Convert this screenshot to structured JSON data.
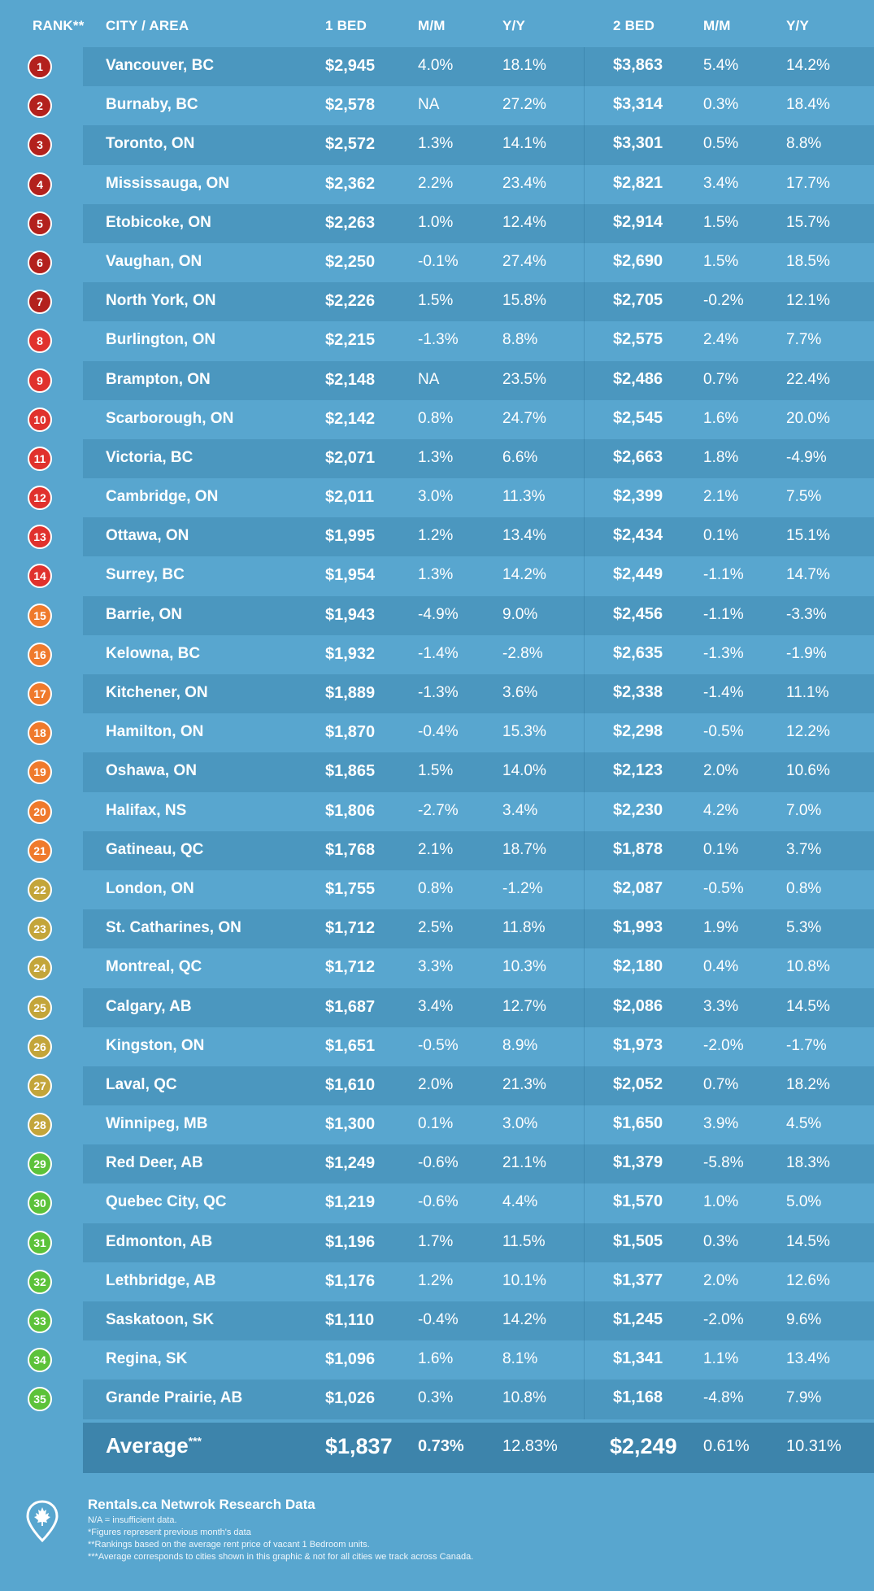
{
  "header": {
    "rank": "RANK**",
    "city": "CITY / AREA",
    "bed1": "1 BED",
    "mm1": "M/M",
    "yy1": "Y/Y",
    "bed2": "2 BED",
    "mm2": "M/M",
    "yy2": "Y/Y"
  },
  "rows": [
    {
      "rank": "1",
      "city": "Vancouver, BC",
      "bed1": "$2,945",
      "mm1": "4.0%",
      "yy1": "18.1%",
      "bed2": "$3,863",
      "mm2": "5.4%",
      "yy2": "14.2%",
      "color": "#b3211d"
    },
    {
      "rank": "2",
      "city": "Burnaby, BC",
      "bed1": "$2,578",
      "mm1": "NA",
      "yy1": "27.2%",
      "bed2": "$3,314",
      "mm2": "0.3%",
      "yy2": "18.4%",
      "color": "#b3211d"
    },
    {
      "rank": "3",
      "city": "Toronto, ON",
      "bed1": "$2,572",
      "mm1": "1.3%",
      "yy1": "14.1%",
      "bed2": "$3,301",
      "mm2": "0.5%",
      "yy2": "8.8%",
      "color": "#b3211d"
    },
    {
      "rank": "4",
      "city": "Mississauga, ON",
      "bed1": "$2,362",
      "mm1": "2.2%",
      "yy1": "23.4%",
      "bed2": "$2,821",
      "mm2": "3.4%",
      "yy2": "17.7%",
      "color": "#b3211d"
    },
    {
      "rank": "5",
      "city": "Etobicoke, ON",
      "bed1": "$2,263",
      "mm1": "1.0%",
      "yy1": "12.4%",
      "bed2": "$2,914",
      "mm2": "1.5%",
      "yy2": "15.7%",
      "color": "#b3211d"
    },
    {
      "rank": "6",
      "city": "Vaughan, ON",
      "bed1": "$2,250",
      "mm1": "-0.1%",
      "yy1": "27.4%",
      "bed2": "$2,690",
      "mm2": "1.5%",
      "yy2": "18.5%",
      "color": "#b3211d"
    },
    {
      "rank": "7",
      "city": "North York, ON",
      "bed1": "$2,226",
      "mm1": "1.5%",
      "yy1": "15.8%",
      "bed2": "$2,705",
      "mm2": "-0.2%",
      "yy2": "12.1%",
      "color": "#b3211d"
    },
    {
      "rank": "8",
      "city": "Burlington, ON",
      "bed1": "$2,215",
      "mm1": "-1.3%",
      "yy1": "8.8%",
      "bed2": "$2,575",
      "mm2": "2.4%",
      "yy2": "7.7%",
      "color": "#e0312d"
    },
    {
      "rank": "9",
      "city": "Brampton, ON",
      "bed1": "$2,148",
      "mm1": "NA",
      "yy1": "23.5%",
      "bed2": "$2,486",
      "mm2": "0.7%",
      "yy2": "22.4%",
      "color": "#e0312d"
    },
    {
      "rank": "10",
      "city": "Scarborough, ON",
      "bed1": "$2,142",
      "mm1": "0.8%",
      "yy1": "24.7%",
      "bed2": "$2,545",
      "mm2": "1.6%",
      "yy2": "20.0%",
      "color": "#e0312d"
    },
    {
      "rank": "11",
      "city": "Victoria, BC",
      "bed1": "$2,071",
      "mm1": "1.3%",
      "yy1": "6.6%",
      "bed2": "$2,663",
      "mm2": "1.8%",
      "yy2": "-4.9%",
      "color": "#e0312d"
    },
    {
      "rank": "12",
      "city": "Cambridge, ON",
      "bed1": "$2,011",
      "mm1": "3.0%",
      "yy1": "11.3%",
      "bed2": "$2,399",
      "mm2": "2.1%",
      "yy2": "7.5%",
      "color": "#e0312d"
    },
    {
      "rank": "13",
      "city": "Ottawa, ON",
      "bed1": "$1,995",
      "mm1": "1.2%",
      "yy1": "13.4%",
      "bed2": "$2,434",
      "mm2": "0.1%",
      "yy2": "15.1%",
      "color": "#e0312d"
    },
    {
      "rank": "14",
      "city": "Surrey, BC",
      "bed1": "$1,954",
      "mm1": "1.3%",
      "yy1": "14.2%",
      "bed2": "$2,449",
      "mm2": "-1.1%",
      "yy2": "14.7%",
      "color": "#e0312d"
    },
    {
      "rank": "15",
      "city": "Barrie, ON",
      "bed1": "$1,943",
      "mm1": "-4.9%",
      "yy1": "9.0%",
      "bed2": "$2,456",
      "mm2": "-1.1%",
      "yy2": "-3.3%",
      "color": "#ef7a2c"
    },
    {
      "rank": "16",
      "city": "Kelowna, BC",
      "bed1": "$1,932",
      "mm1": "-1.4%",
      "yy1": "-2.8%",
      "bed2": "$2,635",
      "mm2": "-1.3%",
      "yy2": "-1.9%",
      "color": "#ef7a2c"
    },
    {
      "rank": "17",
      "city": "Kitchener, ON",
      "bed1": "$1,889",
      "mm1": "-1.3%",
      "yy1": "3.6%",
      "bed2": "$2,338",
      "mm2": "-1.4%",
      "yy2": "11.1%",
      "color": "#ef7a2c"
    },
    {
      "rank": "18",
      "city": "Hamilton, ON",
      "bed1": "$1,870",
      "mm1": "-0.4%",
      "yy1": "15.3%",
      "bed2": "$2,298",
      "mm2": "-0.5%",
      "yy2": "12.2%",
      "color": "#ef7a2c"
    },
    {
      "rank": "19",
      "city": "Oshawa, ON",
      "bed1": "$1,865",
      "mm1": "1.5%",
      "yy1": "14.0%",
      "bed2": "$2,123",
      "mm2": "2.0%",
      "yy2": "10.6%",
      "color": "#ef7a2c"
    },
    {
      "rank": "20",
      "city": "Halifax, NS",
      "bed1": "$1,806",
      "mm1": "-2.7%",
      "yy1": "3.4%",
      "bed2": "$2,230",
      "mm2": "4.2%",
      "yy2": "7.0%",
      "color": "#ef7a2c"
    },
    {
      "rank": "21",
      "city": "Gatineau, QC",
      "bed1": "$1,768",
      "mm1": "2.1%",
      "yy1": "18.7%",
      "bed2": "$1,878",
      "mm2": "0.1%",
      "yy2": "3.7%",
      "color": "#ef7a2c"
    },
    {
      "rank": "22",
      "city": "London, ON",
      "bed1": "$1,755",
      "mm1": "0.8%",
      "yy1": "-1.2%",
      "bed2": "$2,087",
      "mm2": "-0.5%",
      "yy2": "0.8%",
      "color": "#c3a53a"
    },
    {
      "rank": "23",
      "city": "St. Catharines, ON",
      "bed1": "$1,712",
      "mm1": "2.5%",
      "yy1": "11.8%",
      "bed2": "$1,993",
      "mm2": "1.9%",
      "yy2": "5.3%",
      "color": "#c3a53a"
    },
    {
      "rank": "24",
      "city": "Montreal, QC",
      "bed1": "$1,712",
      "mm1": "3.3%",
      "yy1": "10.3%",
      "bed2": "$2,180",
      "mm2": "0.4%",
      "yy2": "10.8%",
      "color": "#c3a53a"
    },
    {
      "rank": "25",
      "city": "Calgary, AB",
      "bed1": "$1,687",
      "mm1": "3.4%",
      "yy1": "12.7%",
      "bed2": "$2,086",
      "mm2": "3.3%",
      "yy2": "14.5%",
      "color": "#c3a53a"
    },
    {
      "rank": "26",
      "city": "Kingston, ON",
      "bed1": "$1,651",
      "mm1": "-0.5%",
      "yy1": "8.9%",
      "bed2": "$1,973",
      "mm2": "-2.0%",
      "yy2": "-1.7%",
      "color": "#c3a53a"
    },
    {
      "rank": "27",
      "city": "Laval, QC",
      "bed1": "$1,610",
      "mm1": "2.0%",
      "yy1": "21.3%",
      "bed2": "$2,052",
      "mm2": "0.7%",
      "yy2": "18.2%",
      "color": "#c3a53a"
    },
    {
      "rank": "28",
      "city": "Winnipeg, MB",
      "bed1": "$1,300",
      "mm1": "0.1%",
      "yy1": "3.0%",
      "bed2": "$1,650",
      "mm2": "3.9%",
      "yy2": "4.5%",
      "color": "#c3a53a"
    },
    {
      "rank": "29",
      "city": "Red Deer, AB",
      "bed1": "$1,249",
      "mm1": "-0.6%",
      "yy1": "21.1%",
      "bed2": "$1,379",
      "mm2": "-5.8%",
      "yy2": "18.3%",
      "color": "#5cc23a"
    },
    {
      "rank": "30",
      "city": "Quebec City, QC",
      "bed1": "$1,219",
      "mm1": "-0.6%",
      "yy1": "4.4%",
      "bed2": "$1,570",
      "mm2": "1.0%",
      "yy2": "5.0%",
      "color": "#5cc23a"
    },
    {
      "rank": "31",
      "city": "Edmonton, AB",
      "bed1": "$1,196",
      "mm1": "1.7%",
      "yy1": "11.5%",
      "bed2": "$1,505",
      "mm2": "0.3%",
      "yy2": "14.5%",
      "color": "#5cc23a"
    },
    {
      "rank": "32",
      "city": "Lethbridge, AB",
      "bed1": "$1,176",
      "mm1": "1.2%",
      "yy1": "10.1%",
      "bed2": "$1,377",
      "mm2": "2.0%",
      "yy2": "12.6%",
      "color": "#5cc23a"
    },
    {
      "rank": "33",
      "city": "Saskatoon, SK",
      "bed1": "$1,110",
      "mm1": "-0.4%",
      "yy1": "14.2%",
      "bed2": "$1,245",
      "mm2": "-2.0%",
      "yy2": "9.6%",
      "color": "#5cc23a"
    },
    {
      "rank": "34",
      "city": "Regina, SK",
      "bed1": "$1,096",
      "mm1": "1.6%",
      "yy1": "8.1%",
      "bed2": "$1,341",
      "mm2": "1.1%",
      "yy2": "13.4%",
      "color": "#5cc23a"
    },
    {
      "rank": "35",
      "city": "Grande Prairie, AB",
      "bed1": "$1,026",
      "mm1": "0.3%",
      "yy1": "10.8%",
      "bed2": "$1,168",
      "mm2": "-4.8%",
      "yy2": "7.9%",
      "color": "#5cc23a"
    }
  ],
  "average": {
    "label": "Average",
    "label_mark": "***",
    "bed1": "$1,837",
    "mm1": "0.73%",
    "yy1": "12.83%",
    "bed2": "$2,249",
    "mm2": "0.61%",
    "yy2": "10.31%"
  },
  "footer": {
    "icon": "maple-leaf-pin-icon",
    "title": "Rentals.ca Netwrok Research Data",
    "notes": [
      "N/A = insufficient data.",
      "*Figures represent previous month's data",
      "**Rankings based on the average rent price of vacant 1 Bedroom units.",
      "***Average corresponds to cities shown in this graphic & not for all cities we track across Canada."
    ]
  }
}
